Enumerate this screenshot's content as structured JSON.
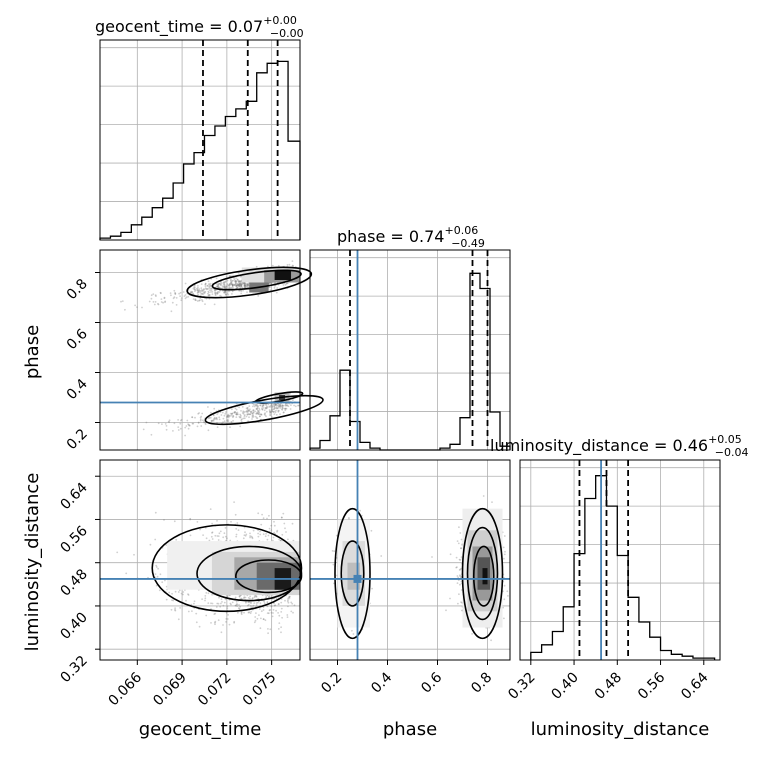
{
  "chart_data": {
    "type": "corner",
    "parameters": [
      "geocent_time",
      "phase",
      "luminosity_distance"
    ],
    "titles": {
      "geocent_time": {
        "name": "geocent_time",
        "median": "0.07",
        "plus": "+0.00",
        "minus": "−0.00"
      },
      "phase": {
        "name": "phase",
        "median": "0.74",
        "plus": "+0.06",
        "minus": "−0.49"
      },
      "luminosity_distance": {
        "name": "luminosity_distance",
        "median": "0.46",
        "plus": "+0.05",
        "minus": "−0.04"
      }
    },
    "ranges": {
      "geocent_time": [
        0.0635,
        0.0769
      ],
      "phase": [
        0.09,
        0.89
      ],
      "luminosity_distance": [
        0.3,
        0.67
      ]
    },
    "ticks": {
      "geocent_time": {
        "values": [
          0.066,
          0.069,
          0.072,
          0.075
        ],
        "labels": [
          "0.066",
          "0.069",
          "0.072",
          "0.075"
        ]
      },
      "phase_x": {
        "values": [
          0.2,
          0.4,
          0.6,
          0.8
        ],
        "labels": [
          "0.2",
          "0.4",
          "0.6",
          "0.8"
        ]
      },
      "phase_y": {
        "values": [
          0.2,
          0.4,
          0.6,
          0.8
        ],
        "labels": [
          "0.2",
          "0.4",
          "0.6",
          "0.8"
        ]
      },
      "luminosity_distance": {
        "values": [
          0.32,
          0.4,
          0.48,
          0.56,
          0.64
        ],
        "labels": [
          "0.32",
          "0.40",
          "0.48",
          "0.56",
          "0.64"
        ]
      }
    },
    "truths": {
      "phase": 0.28,
      "luminosity_distance": 0.45
    },
    "quantiles": {
      "geocent_time": [
        0.0704,
        0.0734,
        0.0754
      ],
      "phase": [
        0.25,
        0.74,
        0.8
      ],
      "luminosity_distance": [
        0.41,
        0.46,
        0.5
      ]
    },
    "histograms": {
      "geocent_time": {
        "edges": [
          0.0635,
          0.0642,
          0.0649,
          0.0656,
          0.0663,
          0.067,
          0.0677,
          0.0684,
          0.0691,
          0.0698,
          0.0705,
          0.0712,
          0.0719,
          0.0726,
          0.0733,
          0.074,
          0.0747,
          0.0754,
          0.0761,
          0.0769
        ],
        "counts": [
          0.01,
          0.02,
          0.04,
          0.08,
          0.12,
          0.17,
          0.22,
          0.3,
          0.4,
          0.46,
          0.55,
          0.6,
          0.65,
          0.69,
          0.73,
          0.88,
          0.93,
          0.94,
          0.52
        ]
      },
      "phase": {
        "edges": [
          0.09,
          0.13,
          0.17,
          0.21,
          0.25,
          0.29,
          0.33,
          0.37,
          0.41,
          0.45,
          0.49,
          0.53,
          0.57,
          0.61,
          0.65,
          0.69,
          0.73,
          0.77,
          0.81,
          0.85,
          0.89
        ],
        "counts": [
          0.01,
          0.05,
          0.18,
          0.42,
          0.15,
          0.04,
          0.01,
          0.0,
          0.0,
          0.0,
          0.0,
          0.0,
          0.0,
          0.01,
          0.03,
          0.17,
          0.93,
          0.85,
          0.2,
          0.02
        ]
      },
      "luminosity_distance": {
        "edges": [
          0.32,
          0.34,
          0.36,
          0.38,
          0.4,
          0.42,
          0.44,
          0.46,
          0.48,
          0.5,
          0.52,
          0.54,
          0.56,
          0.58,
          0.6,
          0.62,
          0.64,
          0.66
        ],
        "counts": [
          0.04,
          0.08,
          0.15,
          0.28,
          0.56,
          0.85,
          0.97,
          0.81,
          0.55,
          0.33,
          0.2,
          0.12,
          0.05,
          0.03,
          0.02,
          0.01,
          0.01
        ]
      }
    },
    "grid": true,
    "axis_labels": {
      "geocent_time": "geocent_time",
      "phase": "phase",
      "luminosity_distance": "luminosity_distance"
    }
  }
}
